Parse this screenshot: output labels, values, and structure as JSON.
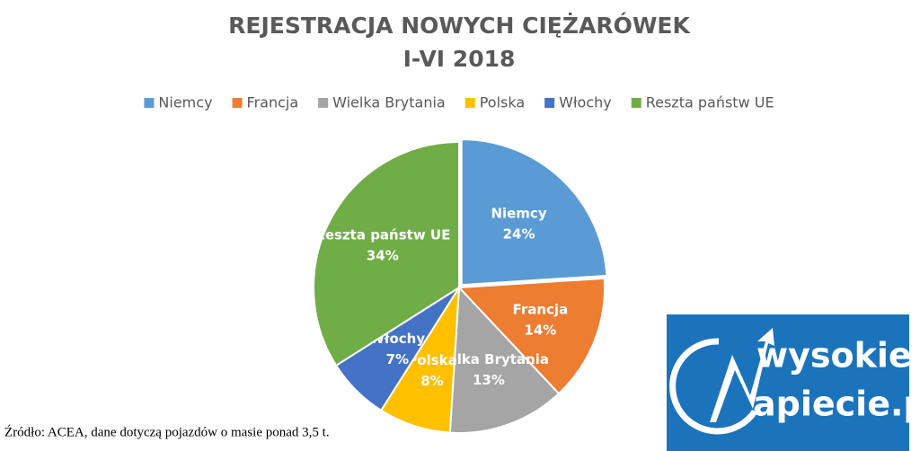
{
  "chart_data": {
    "type": "pie",
    "title": "REJESTRACJA NOWYCH CIĘŻARÓWEK",
    "subtitle": "I-VI 2018",
    "categories": [
      "Niemcy",
      "Francja",
      "Wielka Brytania",
      "Polska",
      "Włochy",
      "Reszta państw UE"
    ],
    "values": [
      24,
      14,
      13,
      8,
      7,
      34
    ],
    "value_labels": [
      "24%",
      "14%",
      "13%",
      "8%",
      "7%",
      "34%"
    ],
    "colors": [
      "#5b9bd5",
      "#ed7d31",
      "#a5a5a5",
      "#ffc000",
      "#4472c4",
      "#70ad47"
    ],
    "legend": "top"
  },
  "source": "Źródło: ACEA, dane dotyczą pojazdów o masie ponad 3,5 t.",
  "logo": {
    "line1": "wysokie",
    "line2": "apiecie.pl"
  }
}
